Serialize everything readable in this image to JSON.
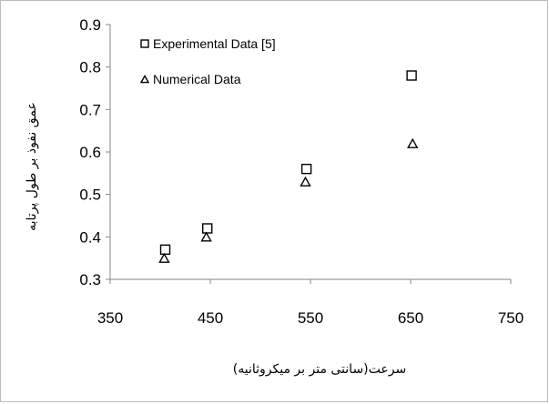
{
  "chart_data": {
    "type": "scatter",
    "title": "",
    "xlabel": "سرعت(سانتی متر بر میکروثانیه)",
    "ylabel": "عمق نفوذ بر طول پرتابه",
    "xlim": [
      350,
      750
    ],
    "ylim": [
      0.3,
      0.9
    ],
    "x_ticks": [
      350,
      450,
      550,
      650,
      750
    ],
    "y_ticks": [
      0.3,
      0.4,
      0.5,
      0.6,
      0.7,
      0.8,
      0.9
    ],
    "x_tick_labels": [
      "350",
      "450",
      "550",
      "650",
      "750"
    ],
    "y_tick_labels": [
      "0.3",
      "0.4",
      "0.5",
      "0.6",
      "0.7",
      "0.8",
      "0.9"
    ],
    "grid": false,
    "legend_position": "top-left",
    "series": [
      {
        "name": "Experimental Data [5]",
        "marker": "square",
        "color": "#000000",
        "x": [
          405,
          447,
          546,
          651
        ],
        "y": [
          0.37,
          0.42,
          0.56,
          0.78
        ]
      },
      {
        "name": "Numerical Data",
        "marker": "triangle",
        "color": "#000000",
        "x": [
          404,
          446,
          545,
          652
        ],
        "y": [
          0.35,
          0.4,
          0.53,
          0.62
        ]
      }
    ]
  }
}
